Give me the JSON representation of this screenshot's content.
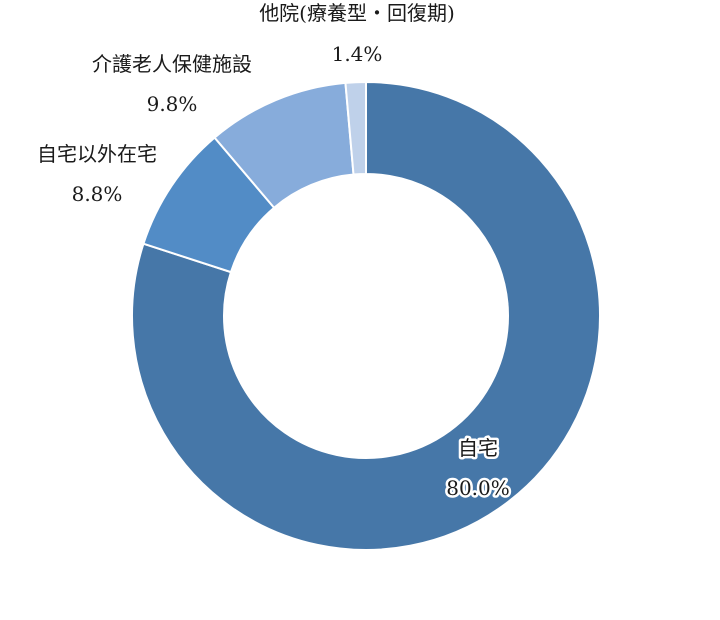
{
  "chart_data": {
    "type": "pie",
    "donut": true,
    "title": "",
    "categories": [
      "自宅",
      "自宅以外在宅",
      "介護老人保健施設",
      "他院(療養型・回復期)"
    ],
    "values": [
      80.0,
      8.8,
      9.8,
      1.4
    ],
    "labels": [
      "80.0%",
      "8.8%",
      "9.8%",
      "1.4%"
    ],
    "colors": [
      "#4677a8",
      "#528cc6",
      "#87acdb",
      "#bfd1ea"
    ],
    "start_angle_deg": 0,
    "direction": "clockwise",
    "legend": "none"
  }
}
